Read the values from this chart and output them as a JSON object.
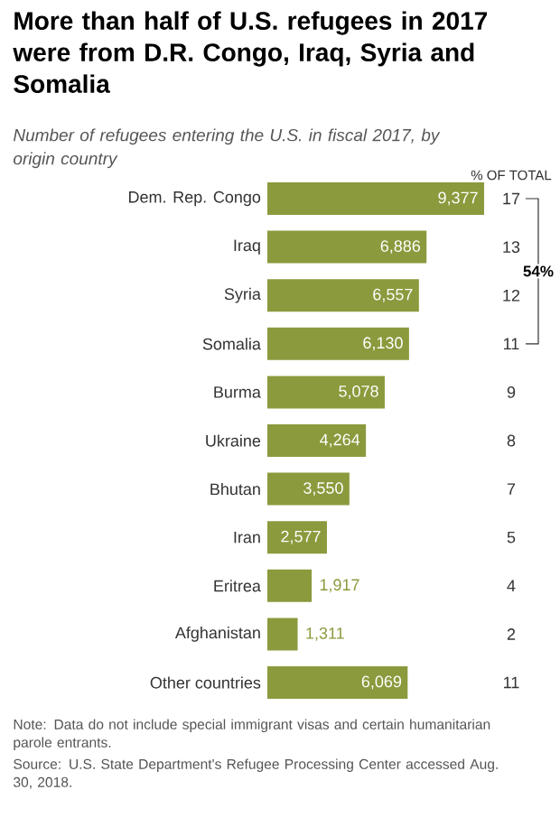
{
  "chart_data": {
    "type": "bar",
    "orientation": "horizontal",
    "title": "More than half of U.S. refugees in 2017 were from D.R. Congo, Iraq, Syria and Somalia",
    "subtitle": "Number of refugees entering the U.S. in fiscal 2017, by origin country",
    "categories": [
      "Dem. Rep. Congo",
      "Iraq",
      "Syria",
      "Somalia",
      "Burma",
      "Ukraine",
      "Bhutan",
      "Iran",
      "Eritrea",
      "Afghanistan",
      "Other countries"
    ],
    "values": [
      9377,
      6886,
      6557,
      6130,
      5078,
      4264,
      3550,
      2577,
      1917,
      1311,
      6069
    ],
    "value_labels": [
      "9,377",
      "6,886",
      "6,557",
      "6,130",
      "5,078",
      "4,264",
      "3,550",
      "2,577",
      "1,917",
      "1,311",
      "6,069"
    ],
    "color": "#8b9a3d",
    "annotations": [
      "% OF TOTAL",
      "17",
      "13",
      "12",
      "11",
      "9",
      "8",
      "7",
      "5",
      "4",
      "2",
      "11",
      "54%",
      "Note: Data do not include special immigrant visas and certain humanitarian parole entrants.",
      "Source: U.S. State Department's Refugee Processing Center accessed Aug. 30, 2018."
    ]
  }
}
